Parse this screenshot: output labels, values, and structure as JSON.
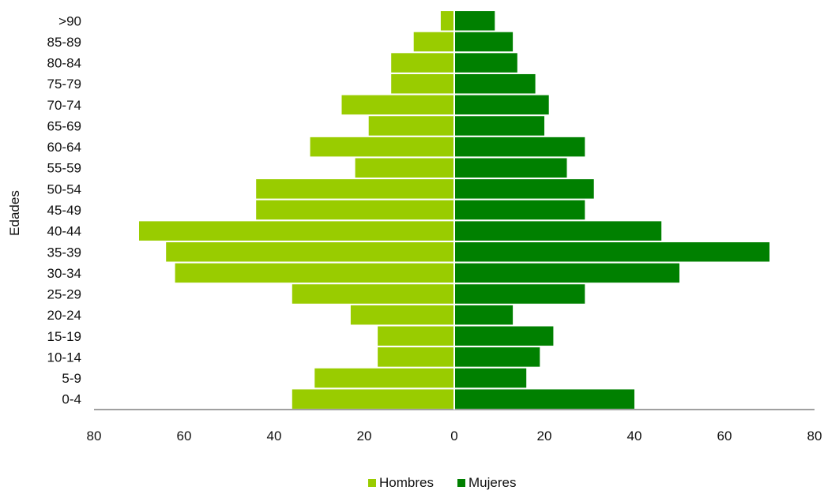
{
  "chart_data": {
    "type": "bar",
    "orientation": "horizontal",
    "layout": "population-pyramid",
    "categories": [
      "0-4",
      "5-9",
      "10-14",
      "15-19",
      "20-24",
      "25-29",
      "30-34",
      "35-39",
      "40-44",
      "45-49",
      "50-54",
      "55-59",
      "60-64",
      "65-69",
      "70-74",
      "75-79",
      "80-84",
      "85-89",
      ">90"
    ],
    "series": [
      {
        "name": "Hombres",
        "color": "#99cc00",
        "values": [
          36,
          31,
          17,
          17,
          23,
          36,
          62,
          64,
          70,
          44,
          44,
          22,
          32,
          19,
          25,
          14,
          14,
          9,
          3
        ]
      },
      {
        "name": "Mujeres",
        "color": "#008000",
        "values": [
          40,
          16,
          19,
          22,
          13,
          29,
          50,
          70,
          46,
          29,
          31,
          25,
          29,
          20,
          21,
          18,
          14,
          13,
          9
        ]
      }
    ],
    "ylabel": "Edades",
    "xlabel": "",
    "title": "",
    "xlim": [
      -80,
      80
    ],
    "xticks": [
      "80",
      "60",
      "40",
      "20",
      "0",
      "20",
      "40",
      "60",
      "80"
    ],
    "grid": false,
    "legend": "bottom-center"
  }
}
